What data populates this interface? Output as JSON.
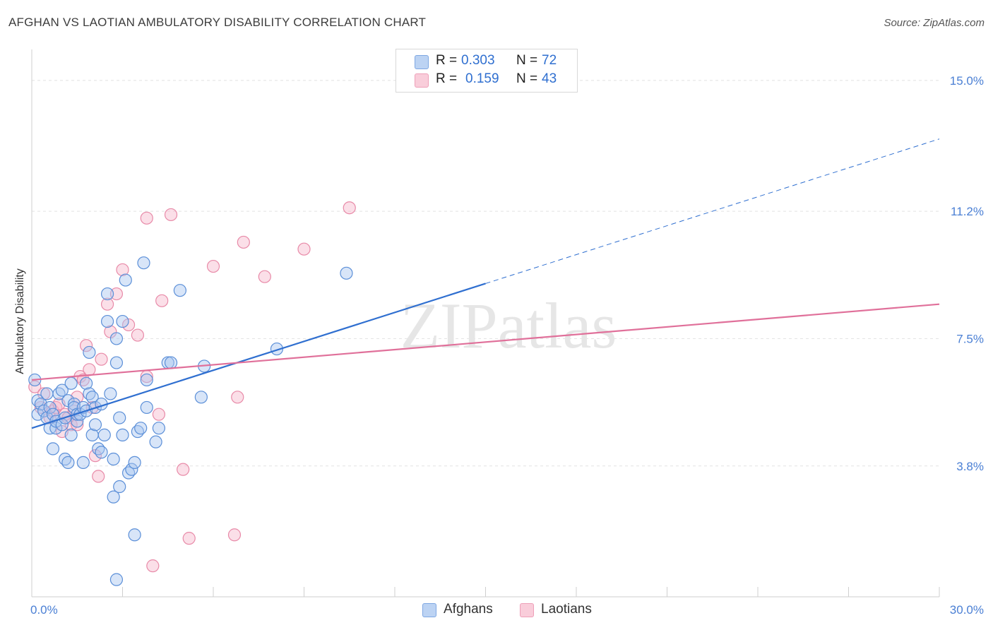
{
  "title": "AFGHAN VS LAOTIAN AMBULATORY DISABILITY CORRELATION CHART",
  "source": "Source: ZipAtlas.com",
  "watermark": "ZIPatlas",
  "legend": {
    "rows": [
      {
        "r_label": "R =",
        "r_value": "0.303",
        "n_label": "N =",
        "n_value": "72"
      },
      {
        "r_label": "R =",
        "r_value": "0.159",
        "n_label": "N =",
        "n_value": "43"
      }
    ]
  },
  "bottom_legend": [
    "Afghans",
    "Laotians"
  ],
  "colors": {
    "afghan_fill": "#a9c6ef",
    "afghan_stroke": "#5b8fd8",
    "afghan_line": "#2f6fd0",
    "laotian_fill": "#f6b9cb",
    "laotian_stroke": "#e88aa8",
    "laotian_line": "#e0709a",
    "tick_text": "#4a7fd4",
    "grid": "#e2e2e2"
  },
  "chart_data": {
    "type": "scatter",
    "title": "AFGHAN VS LAOTIAN AMBULATORY DISABILITY CORRELATION CHART",
    "xlabel": "",
    "ylabel": "Ambulatory Disability",
    "xlim": [
      0,
      30
    ],
    "ylim": [
      0,
      15.9
    ],
    "x_tick_labels": [
      "0.0%",
      "30.0%"
    ],
    "y_ticks": [
      3.8,
      7.5,
      11.2,
      15.0
    ],
    "y_tick_labels": [
      "3.8%",
      "7.5%",
      "11.2%",
      "15.0%"
    ],
    "series": [
      {
        "name": "Afghans",
        "r": 0.303,
        "n": 72,
        "trend": {
          "x0": 0,
          "y0": 4.9,
          "x1": 30,
          "y1": 13.3,
          "solid_until_x": 15
        },
        "points": [
          [
            0.1,
            6.3
          ],
          [
            0.2,
            5.7
          ],
          [
            0.2,
            5.3
          ],
          [
            0.3,
            5.6
          ],
          [
            0.4,
            5.4
          ],
          [
            0.5,
            5.2
          ],
          [
            0.5,
            5.9
          ],
          [
            0.6,
            4.9
          ],
          [
            0.6,
            5.5
          ],
          [
            0.7,
            4.3
          ],
          [
            0.7,
            5.3
          ],
          [
            0.8,
            4.9
          ],
          [
            0.8,
            5.1
          ],
          [
            0.9,
            5.9
          ],
          [
            1.0,
            5.0
          ],
          [
            1.0,
            6.0
          ],
          [
            1.1,
            5.2
          ],
          [
            1.1,
            4.0
          ],
          [
            1.2,
            5.7
          ],
          [
            1.2,
            3.9
          ],
          [
            1.3,
            6.2
          ],
          [
            1.3,
            4.7
          ],
          [
            1.4,
            5.6
          ],
          [
            1.4,
            5.5
          ],
          [
            1.5,
            5.1
          ],
          [
            1.5,
            5.3
          ],
          [
            1.6,
            5.3
          ],
          [
            1.7,
            3.9
          ],
          [
            1.7,
            5.5
          ],
          [
            1.8,
            5.4
          ],
          [
            1.8,
            6.2
          ],
          [
            1.9,
            5.9
          ],
          [
            1.9,
            7.1
          ],
          [
            2.0,
            5.8
          ],
          [
            2.0,
            4.7
          ],
          [
            2.1,
            5.5
          ],
          [
            2.2,
            4.3
          ],
          [
            2.3,
            5.6
          ],
          [
            2.3,
            4.2
          ],
          [
            2.4,
            4.7
          ],
          [
            2.5,
            8.8
          ],
          [
            2.5,
            8.0
          ],
          [
            2.6,
            5.9
          ],
          [
            2.7,
            4.0
          ],
          [
            2.8,
            6.8
          ],
          [
            2.8,
            7.5
          ],
          [
            2.9,
            5.2
          ],
          [
            2.9,
            3.2
          ],
          [
            3.0,
            8.0
          ],
          [
            3.0,
            4.7
          ],
          [
            3.1,
            9.2
          ],
          [
            3.2,
            3.6
          ],
          [
            3.3,
            3.7
          ],
          [
            3.4,
            3.9
          ],
          [
            3.5,
            4.8
          ],
          [
            3.6,
            4.9
          ],
          [
            3.7,
            9.7
          ],
          [
            3.8,
            6.3
          ],
          [
            3.8,
            5.5
          ],
          [
            4.1,
            4.5
          ],
          [
            4.2,
            4.9
          ],
          [
            4.5,
            6.8
          ],
          [
            4.6,
            6.8
          ],
          [
            4.9,
            8.9
          ],
          [
            5.6,
            5.8
          ],
          [
            5.7,
            6.7
          ],
          [
            8.1,
            7.2
          ],
          [
            10.4,
            9.4
          ],
          [
            2.7,
            2.9
          ],
          [
            3.4,
            1.8
          ],
          [
            2.8,
            0.5
          ],
          [
            2.1,
            5.0
          ]
        ]
      },
      {
        "name": "Laotians",
        "r": 0.159,
        "n": 43,
        "trend": {
          "x0": 0,
          "y0": 6.3,
          "x1": 30,
          "y1": 8.5
        },
        "points": [
          [
            0.1,
            6.1
          ],
          [
            0.3,
            5.5
          ],
          [
            0.4,
            5.9
          ],
          [
            0.6,
            5.2
          ],
          [
            0.7,
            5.4
          ],
          [
            0.8,
            5.5
          ],
          [
            0.9,
            5.6
          ],
          [
            1.0,
            4.8
          ],
          [
            1.1,
            5.3
          ],
          [
            1.2,
            5.2
          ],
          [
            1.3,
            5.0
          ],
          [
            1.4,
            5.4
          ],
          [
            1.5,
            5.8
          ],
          [
            1.5,
            5.0
          ],
          [
            1.6,
            6.4
          ],
          [
            1.7,
            6.3
          ],
          [
            1.8,
            7.3
          ],
          [
            1.9,
            6.6
          ],
          [
            2.0,
            5.5
          ],
          [
            2.1,
            4.1
          ],
          [
            2.2,
            3.5
          ],
          [
            2.3,
            6.9
          ],
          [
            2.5,
            8.5
          ],
          [
            2.6,
            7.7
          ],
          [
            2.8,
            8.8
          ],
          [
            3.0,
            9.5
          ],
          [
            3.2,
            7.9
          ],
          [
            3.5,
            7.6
          ],
          [
            3.8,
            11.0
          ],
          [
            3.8,
            6.4
          ],
          [
            4.2,
            5.3
          ],
          [
            4.3,
            8.6
          ],
          [
            4.6,
            11.1
          ],
          [
            5.0,
            3.7
          ],
          [
            5.2,
            1.7
          ],
          [
            6.0,
            9.6
          ],
          [
            6.7,
            1.8
          ],
          [
            6.8,
            5.8
          ],
          [
            7.0,
            10.3
          ],
          [
            7.7,
            9.3
          ],
          [
            9.0,
            10.1
          ],
          [
            10.5,
            11.3
          ],
          [
            4.0,
            0.9
          ]
        ]
      }
    ]
  }
}
